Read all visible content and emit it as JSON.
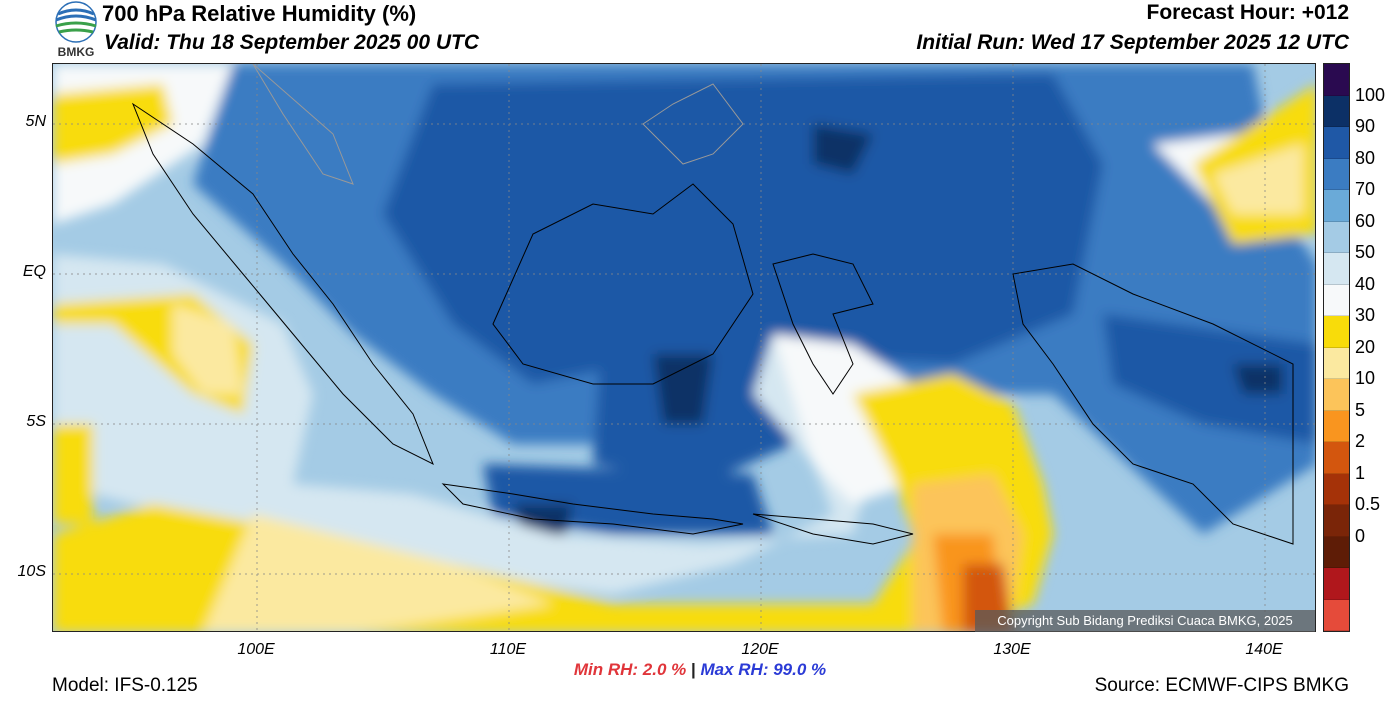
{
  "header": {
    "title": "700 hPa Relative Humidity (%)",
    "valid": "Valid: Thu 18 September 2025 00 UTC",
    "forecast_hour": "Forecast Hour: +012",
    "initial_run": "Initial Run: Wed 17 September 2025 12 UTC"
  },
  "logo": {
    "text": "BMKG",
    "icon": "bmkg-logo-icon"
  },
  "map": {
    "lat_ticks": [
      "5N",
      "EQ",
      "5S",
      "10S"
    ],
    "lon_ticks": [
      "100E",
      "110E",
      "120E",
      "130E",
      "140E"
    ],
    "copyright": "Copyright Sub Bidang Prediksi Cuaca BMKG, 2025"
  },
  "colorbar": {
    "labels": [
      "100",
      "90",
      "80",
      "70",
      "60",
      "50",
      "40",
      "30",
      "20",
      "10",
      "5",
      "2",
      "1",
      "0.5",
      "0"
    ],
    "colors": [
      "#2a0a50",
      "#0c3066",
      "#1f58a6",
      "#3b7cc2",
      "#6aaad8",
      "#a4cbe5",
      "#d5e7f1",
      "#f7f9fa",
      "#f8dc0a",
      "#fbe9a0",
      "#fcc45a",
      "#f9951f",
      "#d3560e",
      "#a53208",
      "#7a2508",
      "#5e1c06",
      "#b0171c",
      "#e54b3a"
    ]
  },
  "stats": {
    "min_rh": "Min RH:   2.0 %",
    "separator": "|",
    "max_rh": "Max RH:  99.0 %"
  },
  "footer": {
    "model": "Model: IFS-0.125",
    "source": "Source: ECMWF-CIPS BMKG"
  }
}
